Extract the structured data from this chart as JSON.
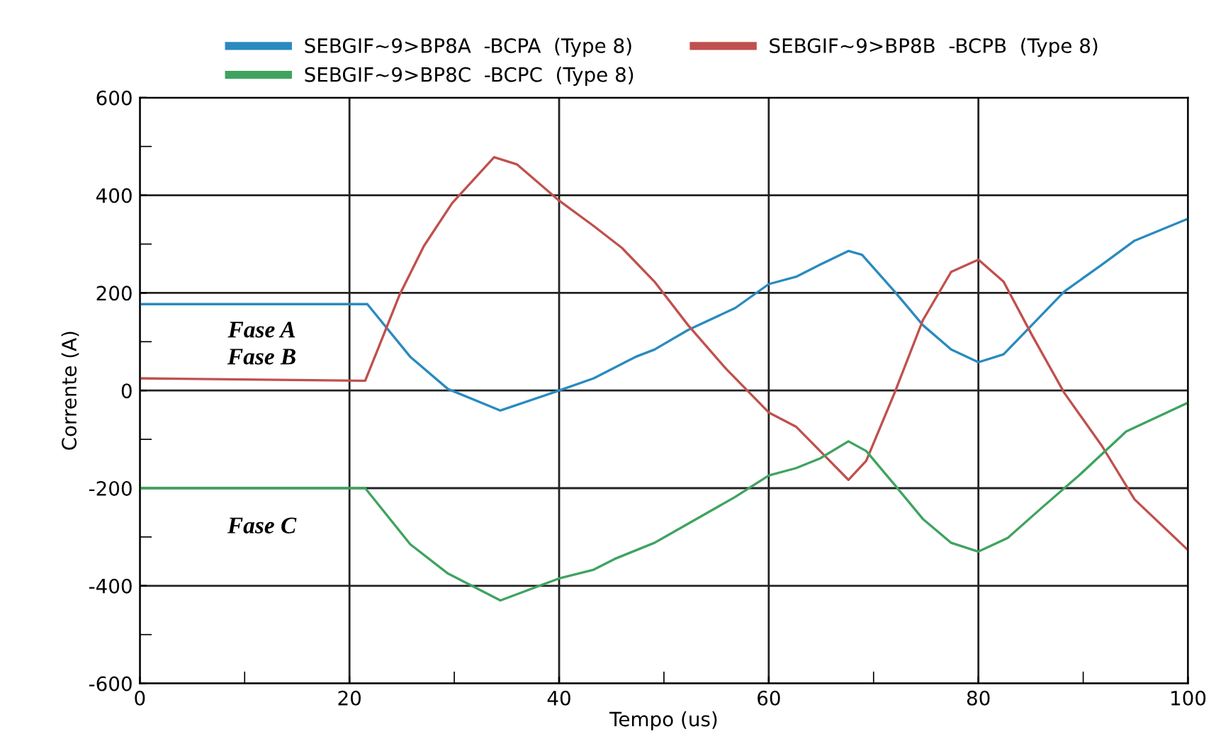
{
  "chart_data": {
    "type": "line",
    "xlabel": "Tempo (us)",
    "ylabel": "Corrente (A)",
    "xlim": [
      0,
      100
    ],
    "ylim": [
      -600,
      600
    ],
    "xticks": [
      0,
      {
        "value": 10,
        "label": null
      },
      20,
      {
        "value": 30,
        "label": null
      },
      40,
      {
        "value": 50,
        "label": null
      },
      60,
      {
        "value": 70,
        "label": null
      },
      80,
      {
        "value": 90,
        "label": null
      },
      100
    ],
    "yticks": [
      -600,
      {
        "value": -500,
        "label": null
      },
      -400,
      {
        "value": -300,
        "label": null
      },
      -200,
      {
        "value": -100,
        "label": null
      },
      0,
      {
        "value": 100,
        "label": null
      },
      200,
      {
        "value": 300,
        "label": null
      },
      400,
      {
        "value": 500,
        "label": null
      },
      600
    ],
    "grid": true,
    "legend": "top",
    "marker": "none",
    "line_style": "solid",
    "series": [
      {
        "name": "SEBGIF~9>BP8A  -BCPA  (Type 8)",
        "color": "#2a8abf",
        "x": [
          0,
          21.7,
          25.8,
          29.4,
          34.4,
          40,
          43.3,
          47.3,
          49.1,
          52.3,
          56.8,
          60,
          62.6,
          64.9,
          67.6,
          68.9,
          72,
          74.7,
          77.4,
          80,
          82.4,
          85.1,
          88.2,
          91.8,
          94.9,
          100
        ],
        "values": [
          177,
          177,
          69,
          3,
          -41,
          0,
          25,
          69,
          84,
          124,
          169,
          218,
          233,
          258,
          286,
          278,
          203,
          134,
          84,
          58,
          74,
          134,
          203,
          258,
          307,
          352
        ]
      },
      {
        "name": "SEBGIF~9>BP8B  -BCPB  (Type 8)",
        "color": "#c0504d",
        "x": [
          0,
          21.5,
          22.6,
          24.8,
          27.1,
          29.8,
          33.8,
          36,
          40,
          43.3,
          46,
          49.1,
          52.3,
          55.9,
          60,
          62.6,
          64.9,
          67.6,
          69.3,
          72,
          74.7,
          77.4,
          80,
          82.4,
          85.1,
          88.2,
          91.8,
          94.9,
          100
        ],
        "values": [
          25,
          20,
          79,
          197,
          296,
          384,
          478,
          463,
          389,
          337,
          292,
          223,
          134,
          45,
          -45,
          -74,
          -124,
          -183,
          -144,
          -5,
          144,
          243,
          268,
          223,
          114,
          -5,
          -114,
          -223,
          -327
        ]
      },
      {
        "name": "SEBGIF~9>BP8C  -BCPC  (Type 8)",
        "color": "#3fa35f",
        "x": [
          0,
          21.5,
          25.8,
          29.4,
          34.4,
          40,
          43.3,
          45.3,
          49.1,
          52.3,
          56.8,
          60,
          62.6,
          64.9,
          67.6,
          69.3,
          72,
          74.7,
          77.4,
          80,
          82.8,
          85.9,
          89.6,
          94.1,
          100
        ],
        "values": [
          -200,
          -200,
          -315,
          -375,
          -430,
          -385,
          -367,
          -345,
          -312,
          -273,
          -218,
          -174,
          -159,
          -139,
          -104,
          -124,
          -193,
          -263,
          -312,
          -330,
          -302,
          -243,
          -174,
          -84,
          -25
        ]
      }
    ],
    "annotations": [
      "Fase A",
      "Fase B",
      "Fase C"
    ]
  }
}
